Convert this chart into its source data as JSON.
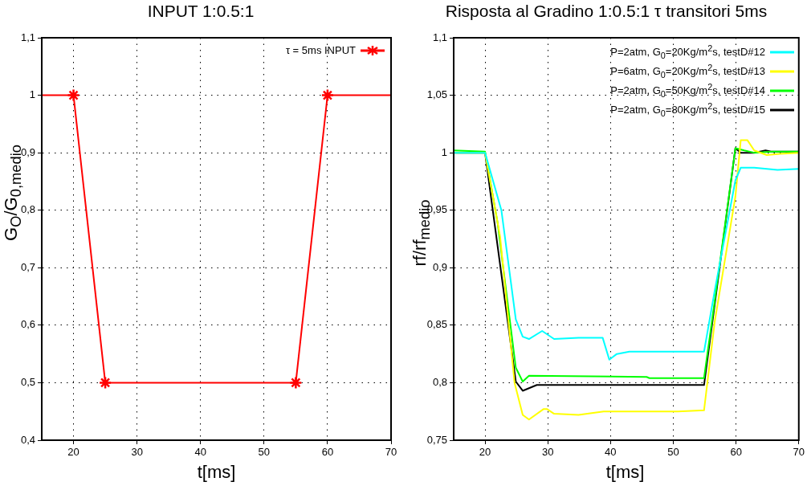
{
  "chart_data": [
    {
      "type": "line",
      "title": "INPUT 1:0.5:1",
      "xlabel": "t[ms]",
      "ylabel": "G$_{O}$/G$_{0,medio}$",
      "xlim": [
        15,
        70
      ],
      "xticks": [
        20,
        30,
        40,
        50,
        60,
        70
      ],
      "ylim": [
        0.4,
        1.1
      ],
      "yticks": [
        {
          "value": 0.4,
          "label": "0,4"
        },
        {
          "value": 0.5,
          "label": "0,5"
        },
        {
          "value": 0.6,
          "label": "0,6"
        },
        {
          "value": 0.7,
          "label": "0,7"
        },
        {
          "value": 0.8,
          "label": "0,8"
        },
        {
          "value": 0.9,
          "label": "0,9"
        },
        {
          "value": 1,
          "label": "1"
        },
        {
          "value": 1.1,
          "label": "1,1"
        }
      ],
      "grid": true,
      "legend": "top right",
      "marker": "cross",
      "line_style": "solid",
      "series": [
        {
          "name": "τ = 5ms INPUT",
          "color": "#ff0000",
          "x": [
            15,
            20,
            25,
            55,
            60,
            70
          ],
          "values": [
            1,
            1,
            0.5,
            0.5,
            1,
            1
          ]
        }
      ]
    },
    {
      "type": "line",
      "title": "Risposta al Gradino 1:0.5:1 τ transitori 5ms",
      "xlabel": "t[ms]",
      "ylabel": "rf/rf$_{medio}$",
      "xlim": [
        15,
        70
      ],
      "xticks": [
        20,
        30,
        40,
        50,
        60,
        70
      ],
      "ylim": [
        0.75,
        1.1
      ],
      "yticks": [
        {
          "value": 0.75,
          "label": "0,75"
        },
        {
          "value": 0.8,
          "label": "0,8"
        },
        {
          "value": 0.85,
          "label": "0,85"
        },
        {
          "value": 0.9,
          "label": "0,9"
        },
        {
          "value": 0.95,
          "label": "0,95"
        },
        {
          "value": 1,
          "label": "1"
        },
        {
          "value": 1.05,
          "label": "1,05"
        },
        {
          "value": 1.1,
          "label": "1,1"
        }
      ],
      "grid": true,
      "legend": "top right",
      "marker": "none",
      "line_style": "solid",
      "series": [
        {
          "name": "P=2atm, G$_{0}$=20Kg/m$^{2}$s, testD#12",
          "color": "#00ffff",
          "x": [
            15,
            20,
            22.6,
            24.9,
            26,
            27,
            29.1,
            31,
            34.9,
            38.75,
            39.8,
            41,
            43,
            54.9,
            56.6,
            59.9,
            60.75,
            62.9,
            66.6,
            70
          ],
          "values": [
            1,
            1,
            0.95,
            0.855,
            0.84,
            0.838,
            0.845,
            0.838,
            0.839,
            0.839,
            0.82,
            0.825,
            0.827,
            0.827,
            0.88,
            0.976,
            0.987,
            0.987,
            0.985,
            0.986
          ]
        },
        {
          "name": "P=6atm, G$_{0}$=20Kg/m$^{2}$s, testD#13",
          "color": "#ffff00",
          "x": [
            15,
            20,
            22.4,
            24.7,
            26,
            27,
            29.3,
            29.9,
            31,
            34.9,
            38.9,
            50.75,
            54.9,
            56.6,
            59.9,
            60.75,
            61.8,
            62.9,
            64.9,
            67,
            70
          ],
          "values": [
            1,
            1,
            0.927,
            0.8,
            0.772,
            0.768,
            0.777,
            0.777,
            0.773,
            0.772,
            0.775,
            0.775,
            0.776,
            0.853,
            0.962,
            1.011,
            1.011,
            1.002,
            0.998,
            0.999,
            1
          ]
        },
        {
          "name": "P=2atm, G$_{0}$=50Kg/m$^{2}$s, testD#14",
          "color": "#00ff00",
          "x": [
            15,
            20,
            22,
            24.9,
            26,
            27,
            45.75,
            46.2,
            54.9,
            56.6,
            59.9,
            61.3,
            62.9,
            65.8,
            70
          ],
          "values": [
            1.002,
            1.001,
            0.939,
            0.813,
            0.801,
            0.806,
            0.805,
            0.804,
            0.804,
            0.871,
            1.004,
            1.002,
            1,
            1.001,
            1.001
          ]
        },
        {
          "name": "P=2atm, G$_{0}$=80Kg/m$^{2}$s, testD#15",
          "color": "#000000",
          "x": [
            15,
            20,
            24.9,
            26,
            28.25,
            32.8,
            54.9,
            59.9,
            60.75,
            62.9,
            64.7,
            65.6,
            70
          ],
          "values": [
            1,
            1,
            0.801,
            0.793,
            0.798,
            0.798,
            0.798,
            1.004,
            1,
            1,
            1.002,
            1.001,
            1.001
          ]
        }
      ]
    }
  ]
}
